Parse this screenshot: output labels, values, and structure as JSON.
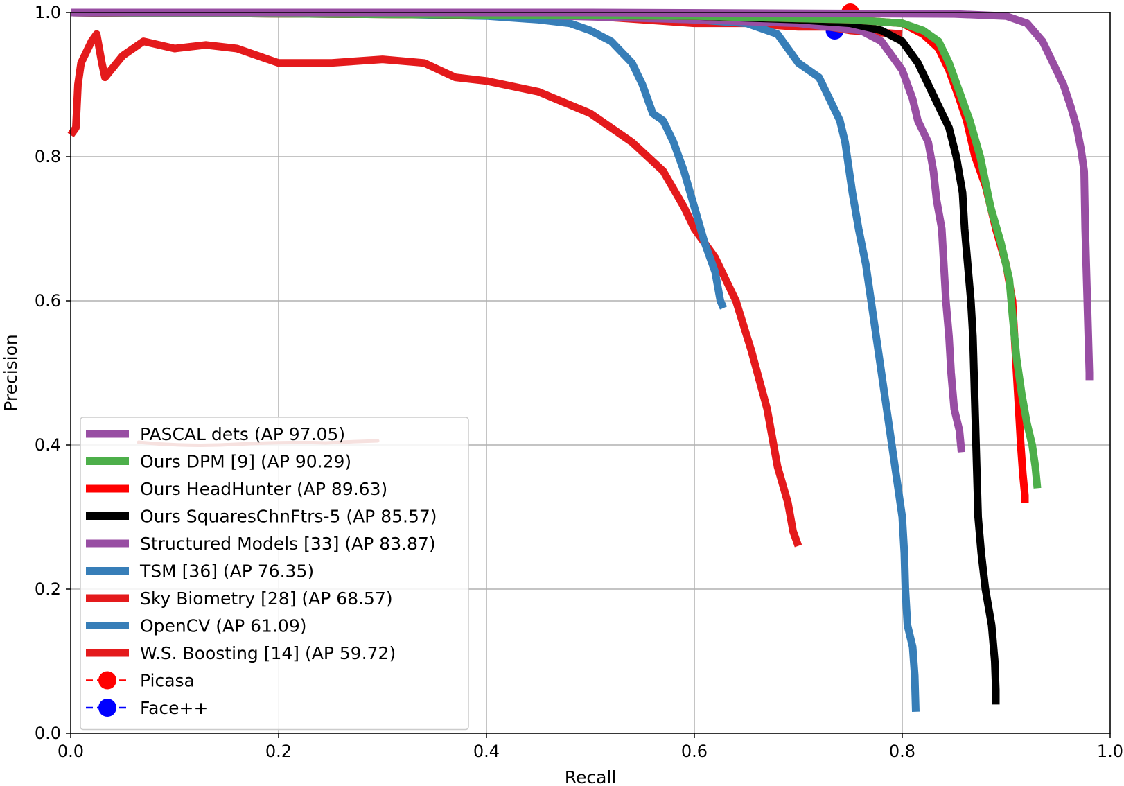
{
  "chart_data": {
    "type": "line",
    "xlabel": "Recall",
    "ylabel": "Precision",
    "xlim": [
      0.0,
      1.0
    ],
    "ylim": [
      0.0,
      1.0
    ],
    "x_ticks": [
      "0.0",
      "0.2",
      "0.4",
      "0.6",
      "0.8",
      "1.0"
    ],
    "y_ticks": [
      "0.0",
      "0.2",
      "0.4",
      "0.6",
      "0.8",
      "1.0"
    ],
    "grid": true,
    "legend_position": "lower-left",
    "series": [
      {
        "name": "PASCAL dets (AP 97.05)",
        "color": "#984ea3",
        "points": [
          [
            0.0,
            1.0
          ],
          [
            0.5,
            1.0
          ],
          [
            0.85,
            0.998
          ],
          [
            0.9,
            0.995
          ],
          [
            0.92,
            0.985
          ],
          [
            0.935,
            0.96
          ],
          [
            0.945,
            0.93
          ],
          [
            0.955,
            0.9
          ],
          [
            0.962,
            0.87
          ],
          [
            0.968,
            0.84
          ],
          [
            0.972,
            0.81
          ],
          [
            0.975,
            0.78
          ],
          [
            0.976,
            0.7
          ],
          [
            0.977,
            0.65
          ],
          [
            0.978,
            0.6
          ],
          [
            0.979,
            0.55
          ],
          [
            0.98,
            0.5
          ],
          [
            0.98,
            0.49
          ]
        ]
      },
      {
        "name": "Ours DPM [9] (AP 90.29)",
        "color": "#4daf4a",
        "points": [
          [
            0.0,
            1.0
          ],
          [
            0.6,
            0.995
          ],
          [
            0.75,
            0.99
          ],
          [
            0.8,
            0.985
          ],
          [
            0.82,
            0.975
          ],
          [
            0.835,
            0.96
          ],
          [
            0.845,
            0.93
          ],
          [
            0.855,
            0.89
          ],
          [
            0.865,
            0.85
          ],
          [
            0.875,
            0.8
          ],
          [
            0.885,
            0.73
          ],
          [
            0.895,
            0.68
          ],
          [
            0.903,
            0.63
          ],
          [
            0.906,
            0.58
          ],
          [
            0.91,
            0.52
          ],
          [
            0.915,
            0.47
          ],
          [
            0.92,
            0.43
          ],
          [
            0.925,
            0.4
          ],
          [
            0.928,
            0.37
          ],
          [
            0.93,
            0.34
          ]
        ]
      },
      {
        "name": "Ours HeadHunter (AP 89.63)",
        "color": "#ff0000",
        "points": [
          [
            0.0,
            1.0
          ],
          [
            0.6,
            0.995
          ],
          [
            0.75,
            0.99
          ],
          [
            0.8,
            0.985
          ],
          [
            0.82,
            0.97
          ],
          [
            0.835,
            0.95
          ],
          [
            0.845,
            0.92
          ],
          [
            0.855,
            0.88
          ],
          [
            0.862,
            0.85
          ],
          [
            0.87,
            0.8
          ],
          [
            0.88,
            0.76
          ],
          [
            0.89,
            0.7
          ],
          [
            0.9,
            0.65
          ],
          [
            0.906,
            0.6
          ],
          [
            0.908,
            0.55
          ],
          [
            0.91,
            0.5
          ],
          [
            0.912,
            0.45
          ],
          [
            0.914,
            0.4
          ],
          [
            0.916,
            0.36
          ],
          [
            0.918,
            0.33
          ],
          [
            0.918,
            0.32
          ]
        ]
      },
      {
        "name": "Ours SquaresChnFtrs-5 (AP 85.57)",
        "color": "#000000",
        "points": [
          [
            0.0,
            1.0
          ],
          [
            0.6,
            0.995
          ],
          [
            0.7,
            0.99
          ],
          [
            0.75,
            0.985
          ],
          [
            0.78,
            0.975
          ],
          [
            0.8,
            0.96
          ],
          [
            0.815,
            0.93
          ],
          [
            0.825,
            0.9
          ],
          [
            0.835,
            0.87
          ],
          [
            0.845,
            0.84
          ],
          [
            0.852,
            0.8
          ],
          [
            0.858,
            0.75
          ],
          [
            0.86,
            0.7
          ],
          [
            0.863,
            0.65
          ],
          [
            0.866,
            0.6
          ],
          [
            0.868,
            0.55
          ],
          [
            0.869,
            0.5
          ],
          [
            0.87,
            0.45
          ],
          [
            0.871,
            0.4
          ],
          [
            0.872,
            0.35
          ],
          [
            0.873,
            0.3
          ],
          [
            0.876,
            0.25
          ],
          [
            0.88,
            0.2
          ],
          [
            0.886,
            0.15
          ],
          [
            0.889,
            0.1
          ],
          [
            0.89,
            0.06
          ],
          [
            0.89,
            0.04
          ]
        ]
      },
      {
        "name": "Structured Models [33] (AP 83.87)",
        "color": "#984ea3",
        "points": [
          [
            0.0,
            1.0
          ],
          [
            0.4,
            0.998
          ],
          [
            0.6,
            0.99
          ],
          [
            0.7,
            0.985
          ],
          [
            0.76,
            0.975
          ],
          [
            0.78,
            0.96
          ],
          [
            0.79,
            0.94
          ],
          [
            0.8,
            0.92
          ],
          [
            0.81,
            0.88
          ],
          [
            0.815,
            0.85
          ],
          [
            0.825,
            0.82
          ],
          [
            0.83,
            0.78
          ],
          [
            0.833,
            0.74
          ],
          [
            0.838,
            0.7
          ],
          [
            0.84,
            0.65
          ],
          [
            0.842,
            0.6
          ],
          [
            0.845,
            0.55
          ],
          [
            0.847,
            0.5
          ],
          [
            0.85,
            0.45
          ],
          [
            0.855,
            0.42
          ],
          [
            0.857,
            0.39
          ]
        ]
      },
      {
        "name": "TSM [36] (AP 76.35)",
        "color": "#377eb8",
        "points": [
          [
            0.0,
            1.0
          ],
          [
            0.3,
            0.998
          ],
          [
            0.5,
            0.995
          ],
          [
            0.6,
            0.99
          ],
          [
            0.65,
            0.985
          ],
          [
            0.68,
            0.97
          ],
          [
            0.69,
            0.95
          ],
          [
            0.7,
            0.93
          ],
          [
            0.72,
            0.91
          ],
          [
            0.73,
            0.88
          ],
          [
            0.74,
            0.85
          ],
          [
            0.745,
            0.82
          ],
          [
            0.748,
            0.79
          ],
          [
            0.752,
            0.75
          ],
          [
            0.758,
            0.7
          ],
          [
            0.765,
            0.65
          ],
          [
            0.77,
            0.6
          ],
          [
            0.775,
            0.55
          ],
          [
            0.78,
            0.5
          ],
          [
            0.785,
            0.45
          ],
          [
            0.79,
            0.4
          ],
          [
            0.795,
            0.35
          ],
          [
            0.8,
            0.3
          ],
          [
            0.802,
            0.25
          ],
          [
            0.803,
            0.2
          ],
          [
            0.805,
            0.15
          ],
          [
            0.81,
            0.12
          ],
          [
            0.812,
            0.08
          ],
          [
            0.813,
            0.03
          ]
        ]
      },
      {
        "name": "Sky Biometry [28] (AP 68.57)",
        "color": "#e41a1c",
        "points": [
          [
            0.0,
            1.0
          ],
          [
            0.3,
            0.998
          ],
          [
            0.5,
            0.995
          ],
          [
            0.55,
            0.99
          ],
          [
            0.6,
            0.985
          ],
          [
            0.65,
            0.985
          ],
          [
            0.7,
            0.98
          ],
          [
            0.73,
            0.98
          ],
          [
            0.75,
            0.975
          ],
          [
            0.8,
            0.97
          ]
        ]
      },
      {
        "name": "OpenCV (AP 61.09)",
        "color": "#377eb8",
        "points": [
          [
            0.0,
            1.0
          ],
          [
            0.3,
            0.998
          ],
          [
            0.4,
            0.995
          ],
          [
            0.45,
            0.99
          ],
          [
            0.48,
            0.985
          ],
          [
            0.5,
            0.975
          ],
          [
            0.52,
            0.96
          ],
          [
            0.54,
            0.93
          ],
          [
            0.55,
            0.9
          ],
          [
            0.56,
            0.86
          ],
          [
            0.57,
            0.85
          ],
          [
            0.58,
            0.82
          ],
          [
            0.59,
            0.78
          ],
          [
            0.6,
            0.73
          ],
          [
            0.61,
            0.68
          ],
          [
            0.62,
            0.64
          ],
          [
            0.625,
            0.6
          ],
          [
            0.628,
            0.59
          ]
        ]
      },
      {
        "name": "W.S. Boosting [14] (AP 59.72)",
        "color": "#e41a1c",
        "points": [
          [
            0.0,
            0.83
          ],
          [
            0.005,
            0.84
          ],
          [
            0.007,
            0.9
          ],
          [
            0.01,
            0.93
          ],
          [
            0.02,
            0.96
          ],
          [
            0.025,
            0.97
          ],
          [
            0.03,
            0.93
          ],
          [
            0.033,
            0.91
          ],
          [
            0.05,
            0.94
          ],
          [
            0.07,
            0.96
          ],
          [
            0.1,
            0.95
          ],
          [
            0.13,
            0.955
          ],
          [
            0.16,
            0.95
          ],
          [
            0.2,
            0.93
          ],
          [
            0.25,
            0.93
          ],
          [
            0.3,
            0.935
          ],
          [
            0.34,
            0.93
          ],
          [
            0.37,
            0.91
          ],
          [
            0.4,
            0.905
          ],
          [
            0.45,
            0.89
          ],
          [
            0.5,
            0.86
          ],
          [
            0.54,
            0.82
          ],
          [
            0.57,
            0.78
          ],
          [
            0.59,
            0.73
          ],
          [
            0.6,
            0.7
          ],
          [
            0.62,
            0.66
          ],
          [
            0.64,
            0.6
          ],
          [
            0.655,
            0.53
          ],
          [
            0.67,
            0.45
          ],
          [
            0.68,
            0.37
          ],
          [
            0.69,
            0.32
          ],
          [
            0.695,
            0.28
          ],
          [
            0.7,
            0.26
          ]
        ]
      },
      {
        "name": "Picasa",
        "color": "#ff0000",
        "points": [
          [
            0.75,
            1.0
          ]
        ],
        "marker": true
      },
      {
        "name": "Face++",
        "color": "#0000ff",
        "points": [
          [
            0.735,
            0.975
          ]
        ],
        "marker": true
      }
    ]
  }
}
